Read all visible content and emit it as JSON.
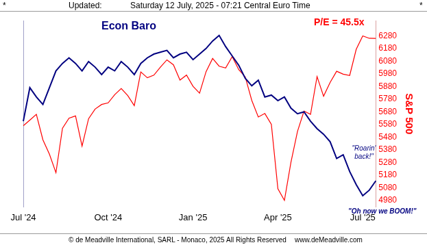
{
  "header": {
    "left": "*",
    "label": "Updated:",
    "datetime": "Saturday 12 July, 2025 - 07:21 Central Euro Time",
    "right": "*"
  },
  "footer": [
    "© de Meadville International, SARL - Monaco, 2025",
    "All Rights Reserved",
    "www.deMeadville.com"
  ],
  "chart_data": {
    "type": "line",
    "title": "Econ Baro",
    "categories": [
      "Jul '24",
      null,
      null,
      null,
      null,
      null,
      null,
      null,
      null,
      null,
      null,
      null,
      null,
      "Oct '24",
      null,
      null,
      null,
      null,
      null,
      null,
      null,
      null,
      null,
      null,
      null,
      null,
      "Jan '25",
      null,
      null,
      null,
      null,
      null,
      null,
      null,
      null,
      null,
      null,
      null,
      null,
      "Apr '25",
      null,
      null,
      null,
      null,
      null,
      null,
      null,
      null,
      null,
      null,
      null,
      null,
      "Jul '25",
      null,
      null
    ],
    "series": [
      {
        "name": "S&P 500",
        "color": "#ff0000",
        "values": [
          5570,
          5615,
          5660,
          5460,
          5346,
          5200,
          5550,
          5630,
          5648,
          5410,
          5626,
          5702,
          5738,
          5751,
          5815,
          5864,
          5808,
          5729,
          5995,
          5949,
          5969,
          6032,
          6090,
          6051,
          5930,
          5970,
          5881,
          5827,
          5997,
          6101,
          6040,
          6026,
          6115,
          6013,
          5955,
          5770,
          5639,
          5667,
          5581,
          5074,
          4982,
          5282,
          5525,
          5686,
          5660,
          5958,
          5803,
          5912,
          6000,
          5977,
          5967,
          6173,
          6279,
          6260,
          6259
        ]
      },
      {
        "name": "Econ Baro",
        "color": "#000080",
        "axis": "y2",
        "values": [
          46,
          64,
          59,
          55,
          64,
          73,
          77,
          80,
          77,
          73,
          78,
          75,
          71,
          75,
          73,
          78,
          75,
          71,
          77,
          80,
          82,
          83,
          84,
          80,
          82,
          83,
          79,
          82,
          85,
          89,
          92,
          86,
          81,
          76,
          69,
          65,
          68,
          59,
          60,
          57,
          59,
          53,
          50,
          51,
          46,
          42,
          39,
          35,
          26,
          28,
          19,
          12,
          6,
          9,
          14
        ]
      }
    ],
    "ylabel": "S&P 500",
    "ylim": [
      4930,
      6400
    ],
    "yticks": [
      4980,
      5080,
      5180,
      5280,
      5380,
      5480,
      5580,
      5680,
      5780,
      5880,
      5980,
      6080,
      6180,
      6280
    ],
    "y2lim": [
      0,
      100
    ],
    "y2ticks": [],
    "grid": false,
    "annotations": [
      {
        "text": "P/E = 45.5x",
        "color": "#ff0000"
      },
      {
        "text": "\"Roarin' back!\"",
        "color": "#000080"
      },
      {
        "text": "\"Oh now we BOOM!\"",
        "color": "#000080"
      }
    ]
  }
}
